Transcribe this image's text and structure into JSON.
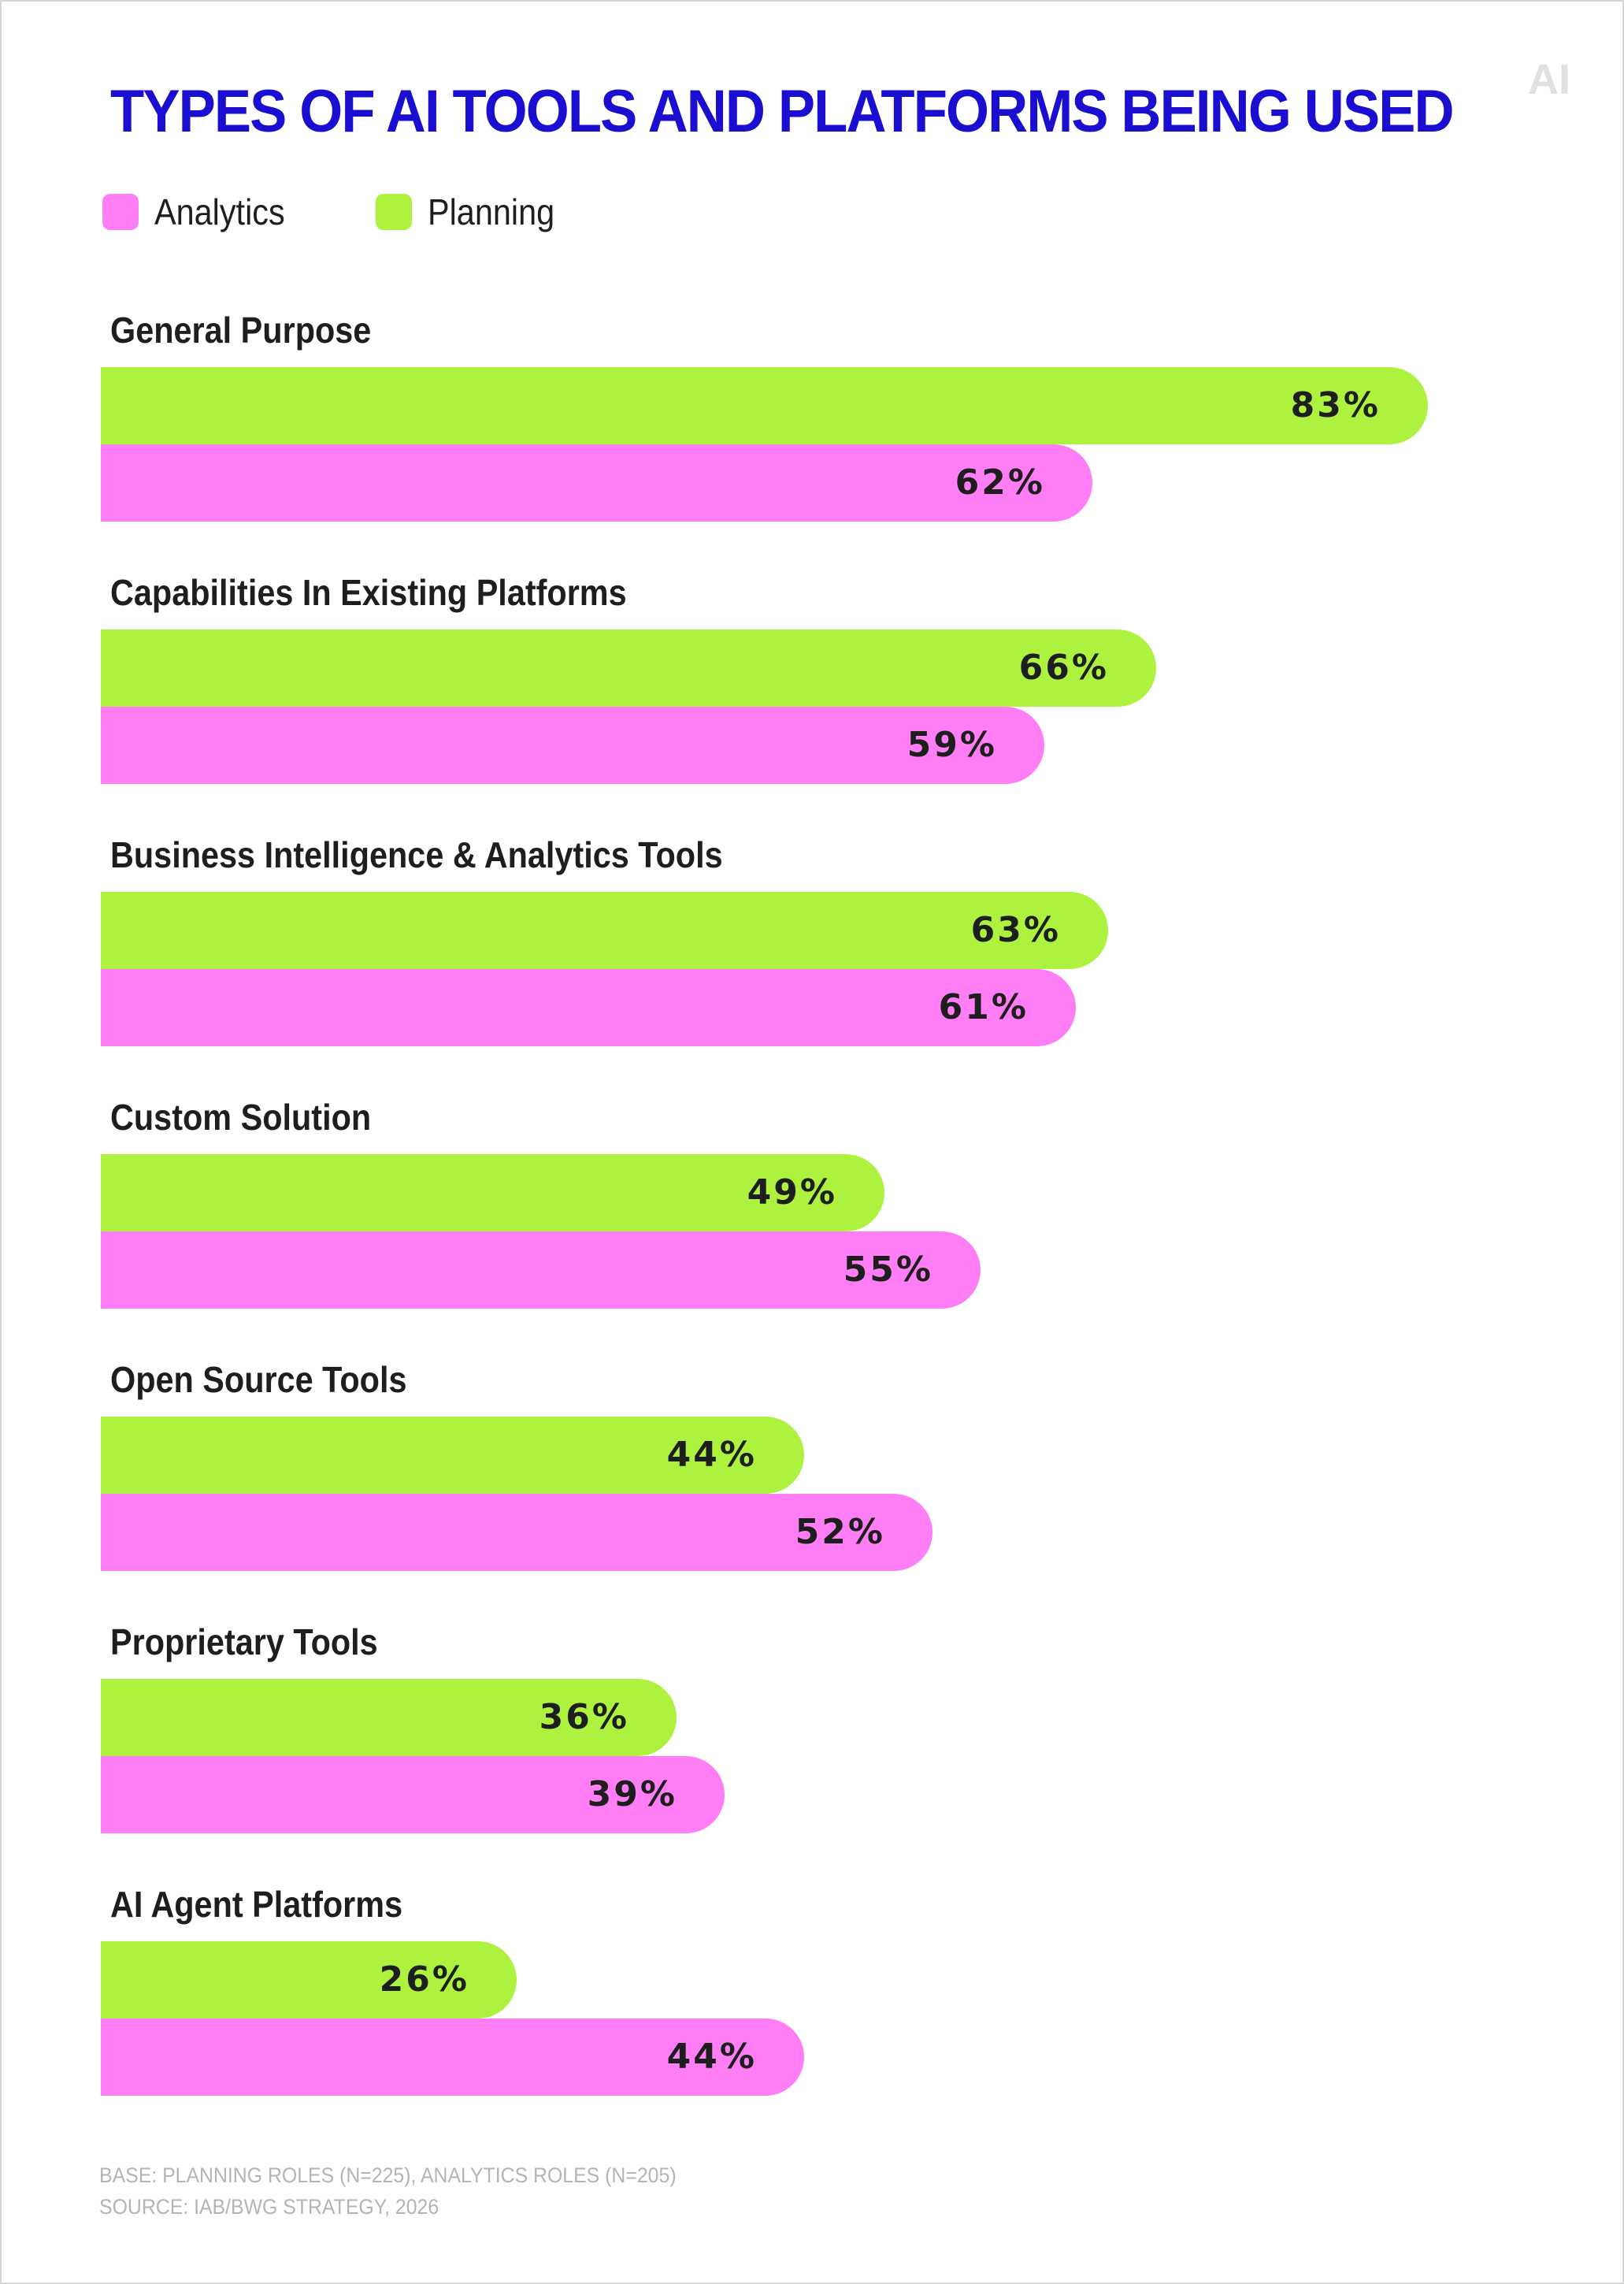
{
  "title": "TYPES OF AI TOOLS AND PLATFORMS BEING USED",
  "logo_text": "AI",
  "colors": {
    "title": "#1a0fd0",
    "analytics": "#ff7ef5",
    "planning": "#adf23e",
    "text": "#1e1e1e",
    "footnote": "#b4b4b4"
  },
  "legend": [
    {
      "label": "Analytics",
      "color": "#ff7ef5"
    },
    {
      "label": "Planning",
      "color": "#adf23e"
    }
  ],
  "chart_data": {
    "type": "bar",
    "orientation": "horizontal",
    "title": "TYPES OF AI TOOLS AND PLATFORMS BEING USED",
    "categories": [
      "General Purpose",
      "Capabilities In Existing Platforms",
      "Business Intelligence & Analytics Tools",
      "Custom Solution",
      "Open Source Tools",
      "Proprietary Tools",
      "AI Agent Platforms"
    ],
    "series": [
      {
        "name": "Planning",
        "color": "#adf23e",
        "values": [
          83,
          66,
          63,
          49,
          44,
          36,
          26
        ]
      },
      {
        "name": "Analytics",
        "color": "#ff7ef5",
        "values": [
          62,
          59,
          61,
          55,
          52,
          39,
          44
        ]
      }
    ],
    "value_format": "{v}%",
    "xlim": [
      0,
      100
    ],
    "grid": false,
    "legend_position": "top-left"
  },
  "footnotes": {
    "base": "BASE: PLANNING ROLES (N=225), ANALYTICS ROLES (N=205)",
    "source": "SOURCE: IAB/BWG STRATEGY, 2026"
  }
}
